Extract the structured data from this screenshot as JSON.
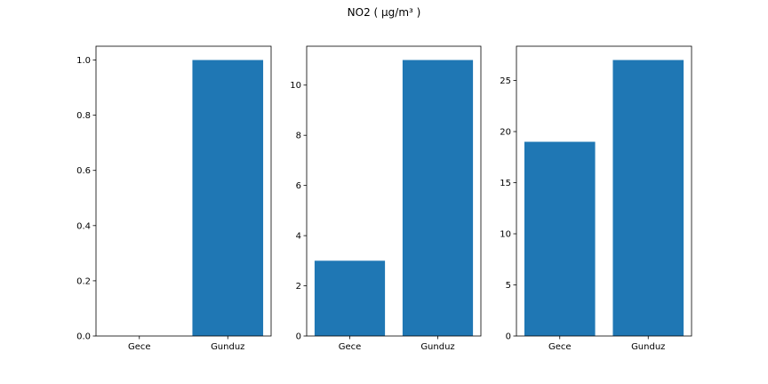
{
  "figure": {
    "title": "NO2 ( µg/m³ )"
  },
  "bar_color": "#1f77b4",
  "chart_data": [
    {
      "type": "bar",
      "title": "",
      "xlabel": "",
      "ylabel": "",
      "categories": [
        "Gece",
        "Gunduz"
      ],
      "values": [
        0,
        1
      ],
      "ylim": [
        0,
        1.05
      ],
      "yticks": [
        0.0,
        0.2,
        0.4,
        0.6,
        0.8,
        1.0
      ],
      "ytick_labels": [
        "0.0",
        "0.2",
        "0.4",
        "0.6",
        "0.8",
        "1.0"
      ],
      "grid": false
    },
    {
      "type": "bar",
      "title": "",
      "xlabel": "",
      "ylabel": "",
      "categories": [
        "Gece",
        "Gunduz"
      ],
      "values": [
        3,
        11
      ],
      "ylim": [
        0,
        11.55
      ],
      "yticks": [
        0,
        2,
        4,
        6,
        8,
        10
      ],
      "ytick_labels": [
        "0",
        "2",
        "4",
        "6",
        "8",
        "10"
      ],
      "grid": false
    },
    {
      "type": "bar",
      "title": "",
      "xlabel": "",
      "ylabel": "",
      "categories": [
        "Gece",
        "Gunduz"
      ],
      "values": [
        19,
        27
      ],
      "ylim": [
        0,
        28.35
      ],
      "yticks": [
        0,
        5,
        10,
        15,
        20,
        25
      ],
      "ytick_labels": [
        "0",
        "5",
        "10",
        "15",
        "20",
        "25"
      ],
      "grid": false
    }
  ]
}
